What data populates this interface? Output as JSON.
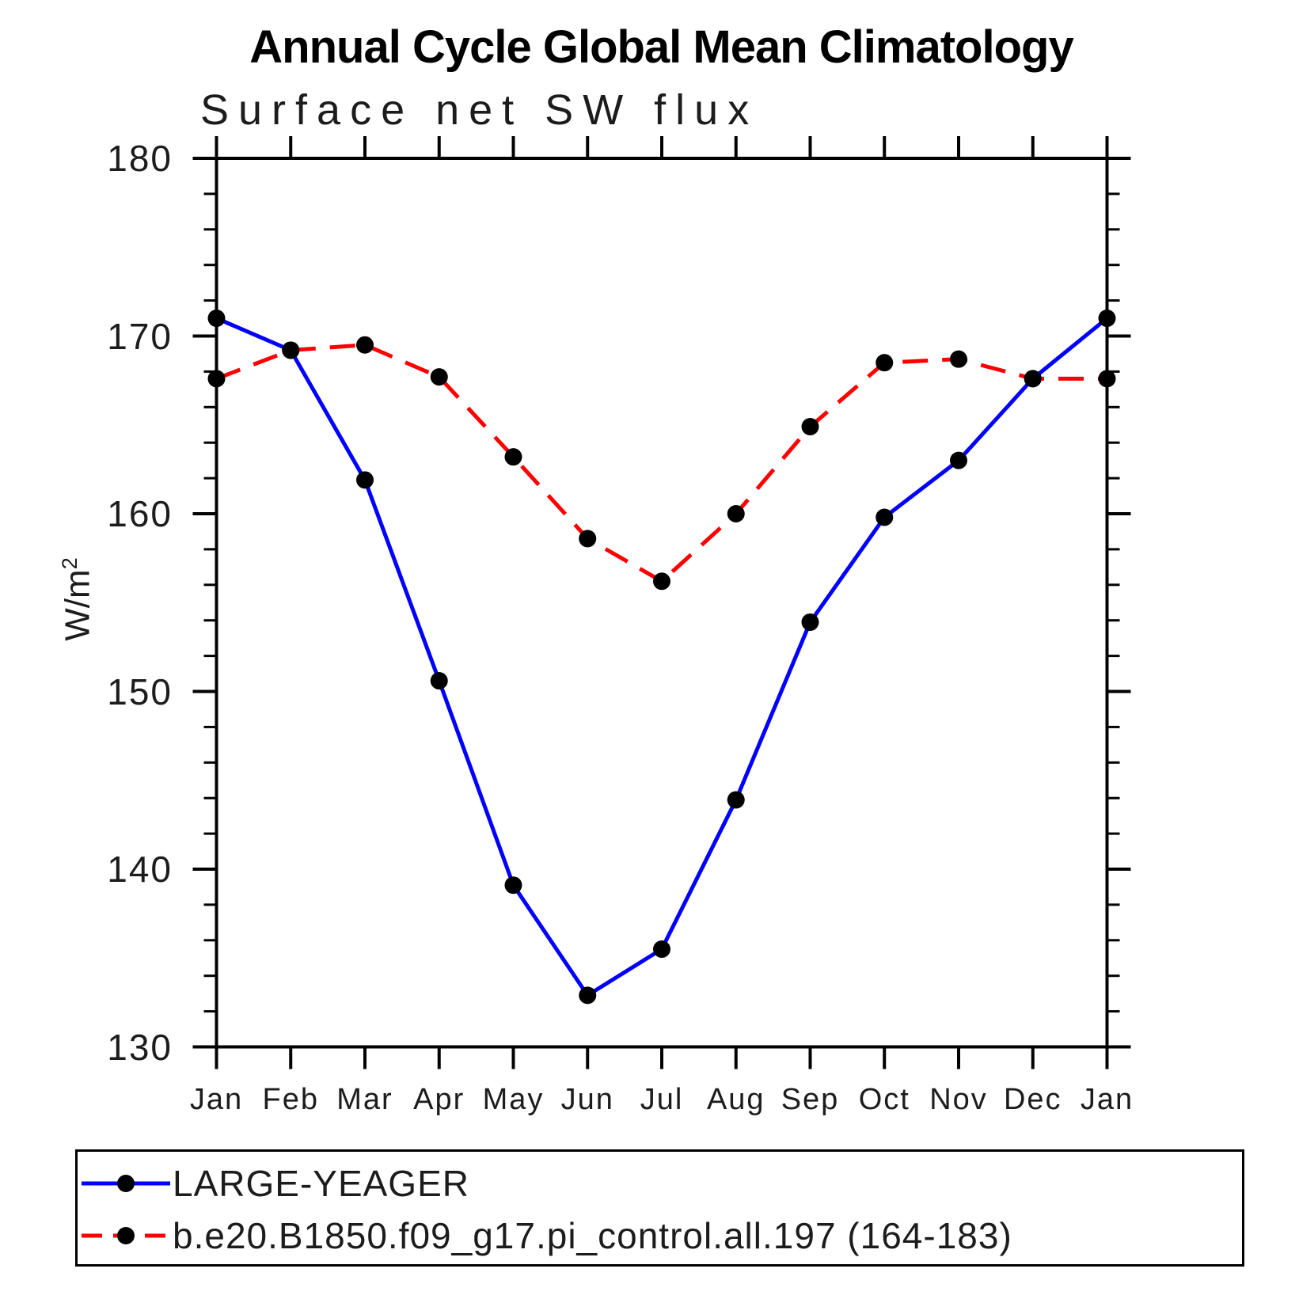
{
  "title": "Annual Cycle Global Mean Climatology",
  "subtitle": "Surface net SW flux",
  "y_axis": {
    "label_base": "W/m",
    "label_exponent": "2",
    "major_ticks": [
      180,
      170,
      160,
      150,
      140,
      130
    ]
  },
  "x_axis": {
    "labels": [
      "Jan",
      "Feb",
      "Mar",
      "Apr",
      "May",
      "Jun",
      "Jul",
      "Aug",
      "Sep",
      "Oct",
      "Nov",
      "Dec",
      "Jan"
    ]
  },
  "legend": {
    "items": [
      {
        "label": "LARGE-YEAGER",
        "color": "#0000ff",
        "style": "solid",
        "marker_color": "#000000"
      },
      {
        "label": "b.e20.B1850.f09_g17.pi_control.all.197 (164-183)",
        "color": "#ff0000",
        "style": "dashed",
        "marker_color": "#000000"
      }
    ]
  },
  "colors": {
    "axis": "#000000",
    "series1": "#0000ff",
    "series2": "#ff0000",
    "marker": "#000000"
  },
  "chart_data": {
    "type": "line",
    "title": "Annual Cycle Global Mean Climatology",
    "subtitle": "Surface net SW flux",
    "xlabel": "",
    "ylabel": "W/m²",
    "categories": [
      "Jan",
      "Feb",
      "Mar",
      "Apr",
      "May",
      "Jun",
      "Jul",
      "Aug",
      "Sep",
      "Oct",
      "Nov",
      "Dec",
      "Jan"
    ],
    "ylim": [
      130,
      180
    ],
    "y_major_ticks": [
      130,
      140,
      150,
      160,
      170,
      180
    ],
    "y_minor_tick_interval": 2,
    "grid": false,
    "legend_position": "bottom",
    "series": [
      {
        "name": "LARGE-YEAGER",
        "color": "#0000ff",
        "line_style": "solid",
        "marker": "circle",
        "marker_color": "#000000",
        "values": [
          171.0,
          169.2,
          161.9,
          150.6,
          139.1,
          132.9,
          135.5,
          143.9,
          153.9,
          159.8,
          163.0,
          167.6,
          171.0
        ]
      },
      {
        "name": "b.e20.B1850.f09_g17.pi_control.all.197 (164-183)",
        "color": "#ff0000",
        "line_style": "dashed",
        "marker": "circle",
        "marker_color": "#000000",
        "values": [
          167.6,
          169.2,
          169.5,
          167.7,
          163.2,
          158.6,
          156.2,
          160.0,
          164.9,
          168.5,
          168.7,
          167.6,
          167.6
        ]
      }
    ]
  }
}
